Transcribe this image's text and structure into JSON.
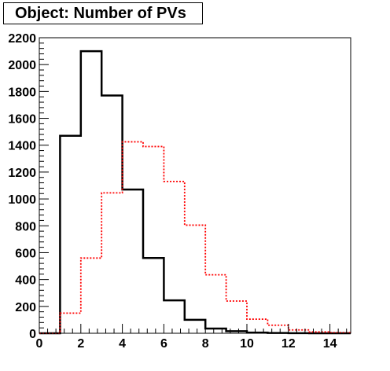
{
  "chart_data": {
    "type": "histogram",
    "title": "Object: Number of PVs",
    "xlabel": "",
    "ylabel": "",
    "xlim": [
      0,
      15
    ],
    "ylim": [
      0,
      2200
    ],
    "x_ticks": [
      "0",
      "2",
      "4",
      "6",
      "8",
      "10",
      "12",
      "14"
    ],
    "y_ticks": [
      "0",
      "200",
      "400",
      "600",
      "800",
      "1000",
      "1200",
      "1400",
      "1600",
      "1800",
      "2000",
      "2200"
    ],
    "bin_edges": [
      0,
      1,
      2,
      3,
      4,
      5,
      6,
      7,
      8,
      9,
      10,
      11,
      12,
      13,
      14,
      15
    ],
    "grid": false,
    "series": [
      {
        "style": "solid",
        "color": "#000000",
        "values": [
          0,
          1470,
          2100,
          1770,
          1070,
          560,
          245,
          100,
          35,
          15,
          5,
          2,
          1,
          0,
          0
        ]
      },
      {
        "style": "dotted",
        "color": "#ff0000",
        "values": [
          0,
          150,
          560,
          1045,
          1425,
          1390,
          1130,
          805,
          435,
          240,
          105,
          60,
          25,
          10,
          5
        ]
      }
    ]
  }
}
